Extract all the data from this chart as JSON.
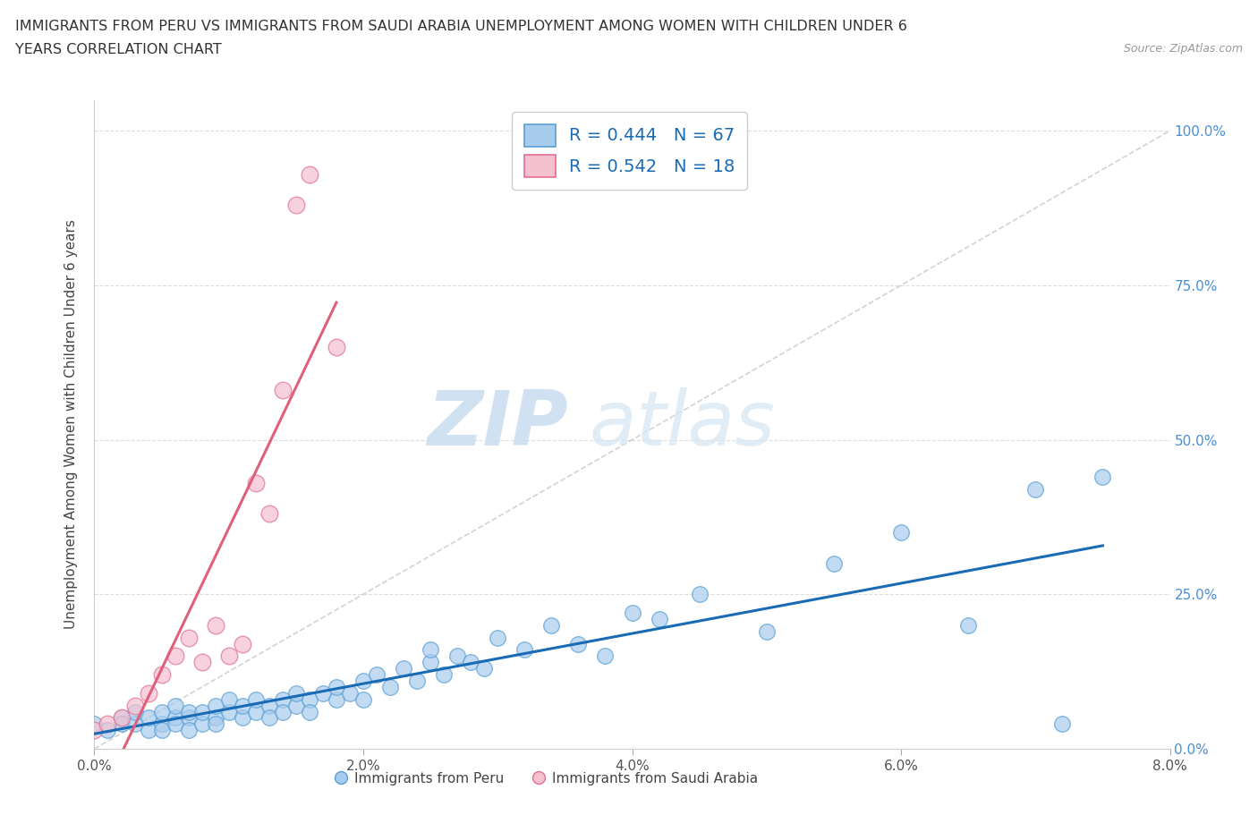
{
  "title_line1": "IMMIGRANTS FROM PERU VS IMMIGRANTS FROM SAUDI ARABIA UNEMPLOYMENT AMONG WOMEN WITH CHILDREN UNDER 6",
  "title_line2": "YEARS CORRELATION CHART",
  "source_text": "Source: ZipAtlas.com",
  "ylabel": "Unemployment Among Women with Children Under 6 years",
  "xlim": [
    0.0,
    0.08
  ],
  "ylim": [
    0.0,
    1.05
  ],
  "xticks": [
    0.0,
    0.02,
    0.04,
    0.06,
    0.08
  ],
  "xtick_labels": [
    "0.0%",
    "2.0%",
    "4.0%",
    "6.0%",
    "8.0%"
  ],
  "yticks": [
    0.0,
    0.25,
    0.5,
    0.75,
    1.0
  ],
  "ytick_labels": [
    "0.0%",
    "25.0%",
    "50.0%",
    "75.0%",
    "100.0%"
  ],
  "peru_dot_color": "#a8ccee",
  "peru_edge_color": "#5a9fd4",
  "saudi_dot_color": "#f5c0d0",
  "saudi_edge_color": "#e07090",
  "trend_peru_color": "#1a6bb5",
  "trend_saudi_color": "#e0607a",
  "diag_color": "#c8c8c8",
  "r_peru": 0.444,
  "n_peru": 67,
  "r_saudi": 0.542,
  "n_saudi": 18,
  "legend_label_peru": "Immigrants from Peru",
  "legend_label_saudi": "Immigrants from Saudi Arabia",
  "peru_x": [
    0.0,
    0.001,
    0.002,
    0.002,
    0.003,
    0.003,
    0.004,
    0.004,
    0.005,
    0.005,
    0.005,
    0.006,
    0.006,
    0.006,
    0.007,
    0.007,
    0.007,
    0.008,
    0.008,
    0.009,
    0.009,
    0.009,
    0.01,
    0.01,
    0.011,
    0.011,
    0.012,
    0.012,
    0.013,
    0.013,
    0.014,
    0.014,
    0.015,
    0.015,
    0.016,
    0.016,
    0.017,
    0.018,
    0.018,
    0.019,
    0.02,
    0.02,
    0.021,
    0.022,
    0.023,
    0.024,
    0.025,
    0.025,
    0.026,
    0.027,
    0.028,
    0.029,
    0.03,
    0.032,
    0.034,
    0.036,
    0.038,
    0.04,
    0.042,
    0.045,
    0.05,
    0.055,
    0.06,
    0.065,
    0.07,
    0.072,
    0.075
  ],
  "peru_y": [
    0.04,
    0.03,
    0.05,
    0.04,
    0.04,
    0.06,
    0.03,
    0.05,
    0.04,
    0.06,
    0.03,
    0.05,
    0.04,
    0.07,
    0.05,
    0.03,
    0.06,
    0.04,
    0.06,
    0.05,
    0.07,
    0.04,
    0.06,
    0.08,
    0.05,
    0.07,
    0.06,
    0.08,
    0.07,
    0.05,
    0.08,
    0.06,
    0.07,
    0.09,
    0.08,
    0.06,
    0.09,
    0.08,
    0.1,
    0.09,
    0.11,
    0.08,
    0.12,
    0.1,
    0.13,
    0.11,
    0.14,
    0.16,
    0.12,
    0.15,
    0.14,
    0.13,
    0.18,
    0.16,
    0.2,
    0.17,
    0.15,
    0.22,
    0.21,
    0.25,
    0.19,
    0.3,
    0.35,
    0.2,
    0.42,
    0.04,
    0.44
  ],
  "saudi_x": [
    0.0,
    0.001,
    0.002,
    0.003,
    0.004,
    0.005,
    0.006,
    0.007,
    0.008,
    0.009,
    0.01,
    0.011,
    0.012,
    0.013,
    0.014,
    0.015,
    0.016,
    0.018
  ],
  "saudi_y": [
    0.03,
    0.04,
    0.05,
    0.07,
    0.09,
    0.12,
    0.15,
    0.18,
    0.14,
    0.2,
    0.15,
    0.17,
    0.43,
    0.38,
    0.58,
    0.88,
    0.93,
    0.65
  ]
}
